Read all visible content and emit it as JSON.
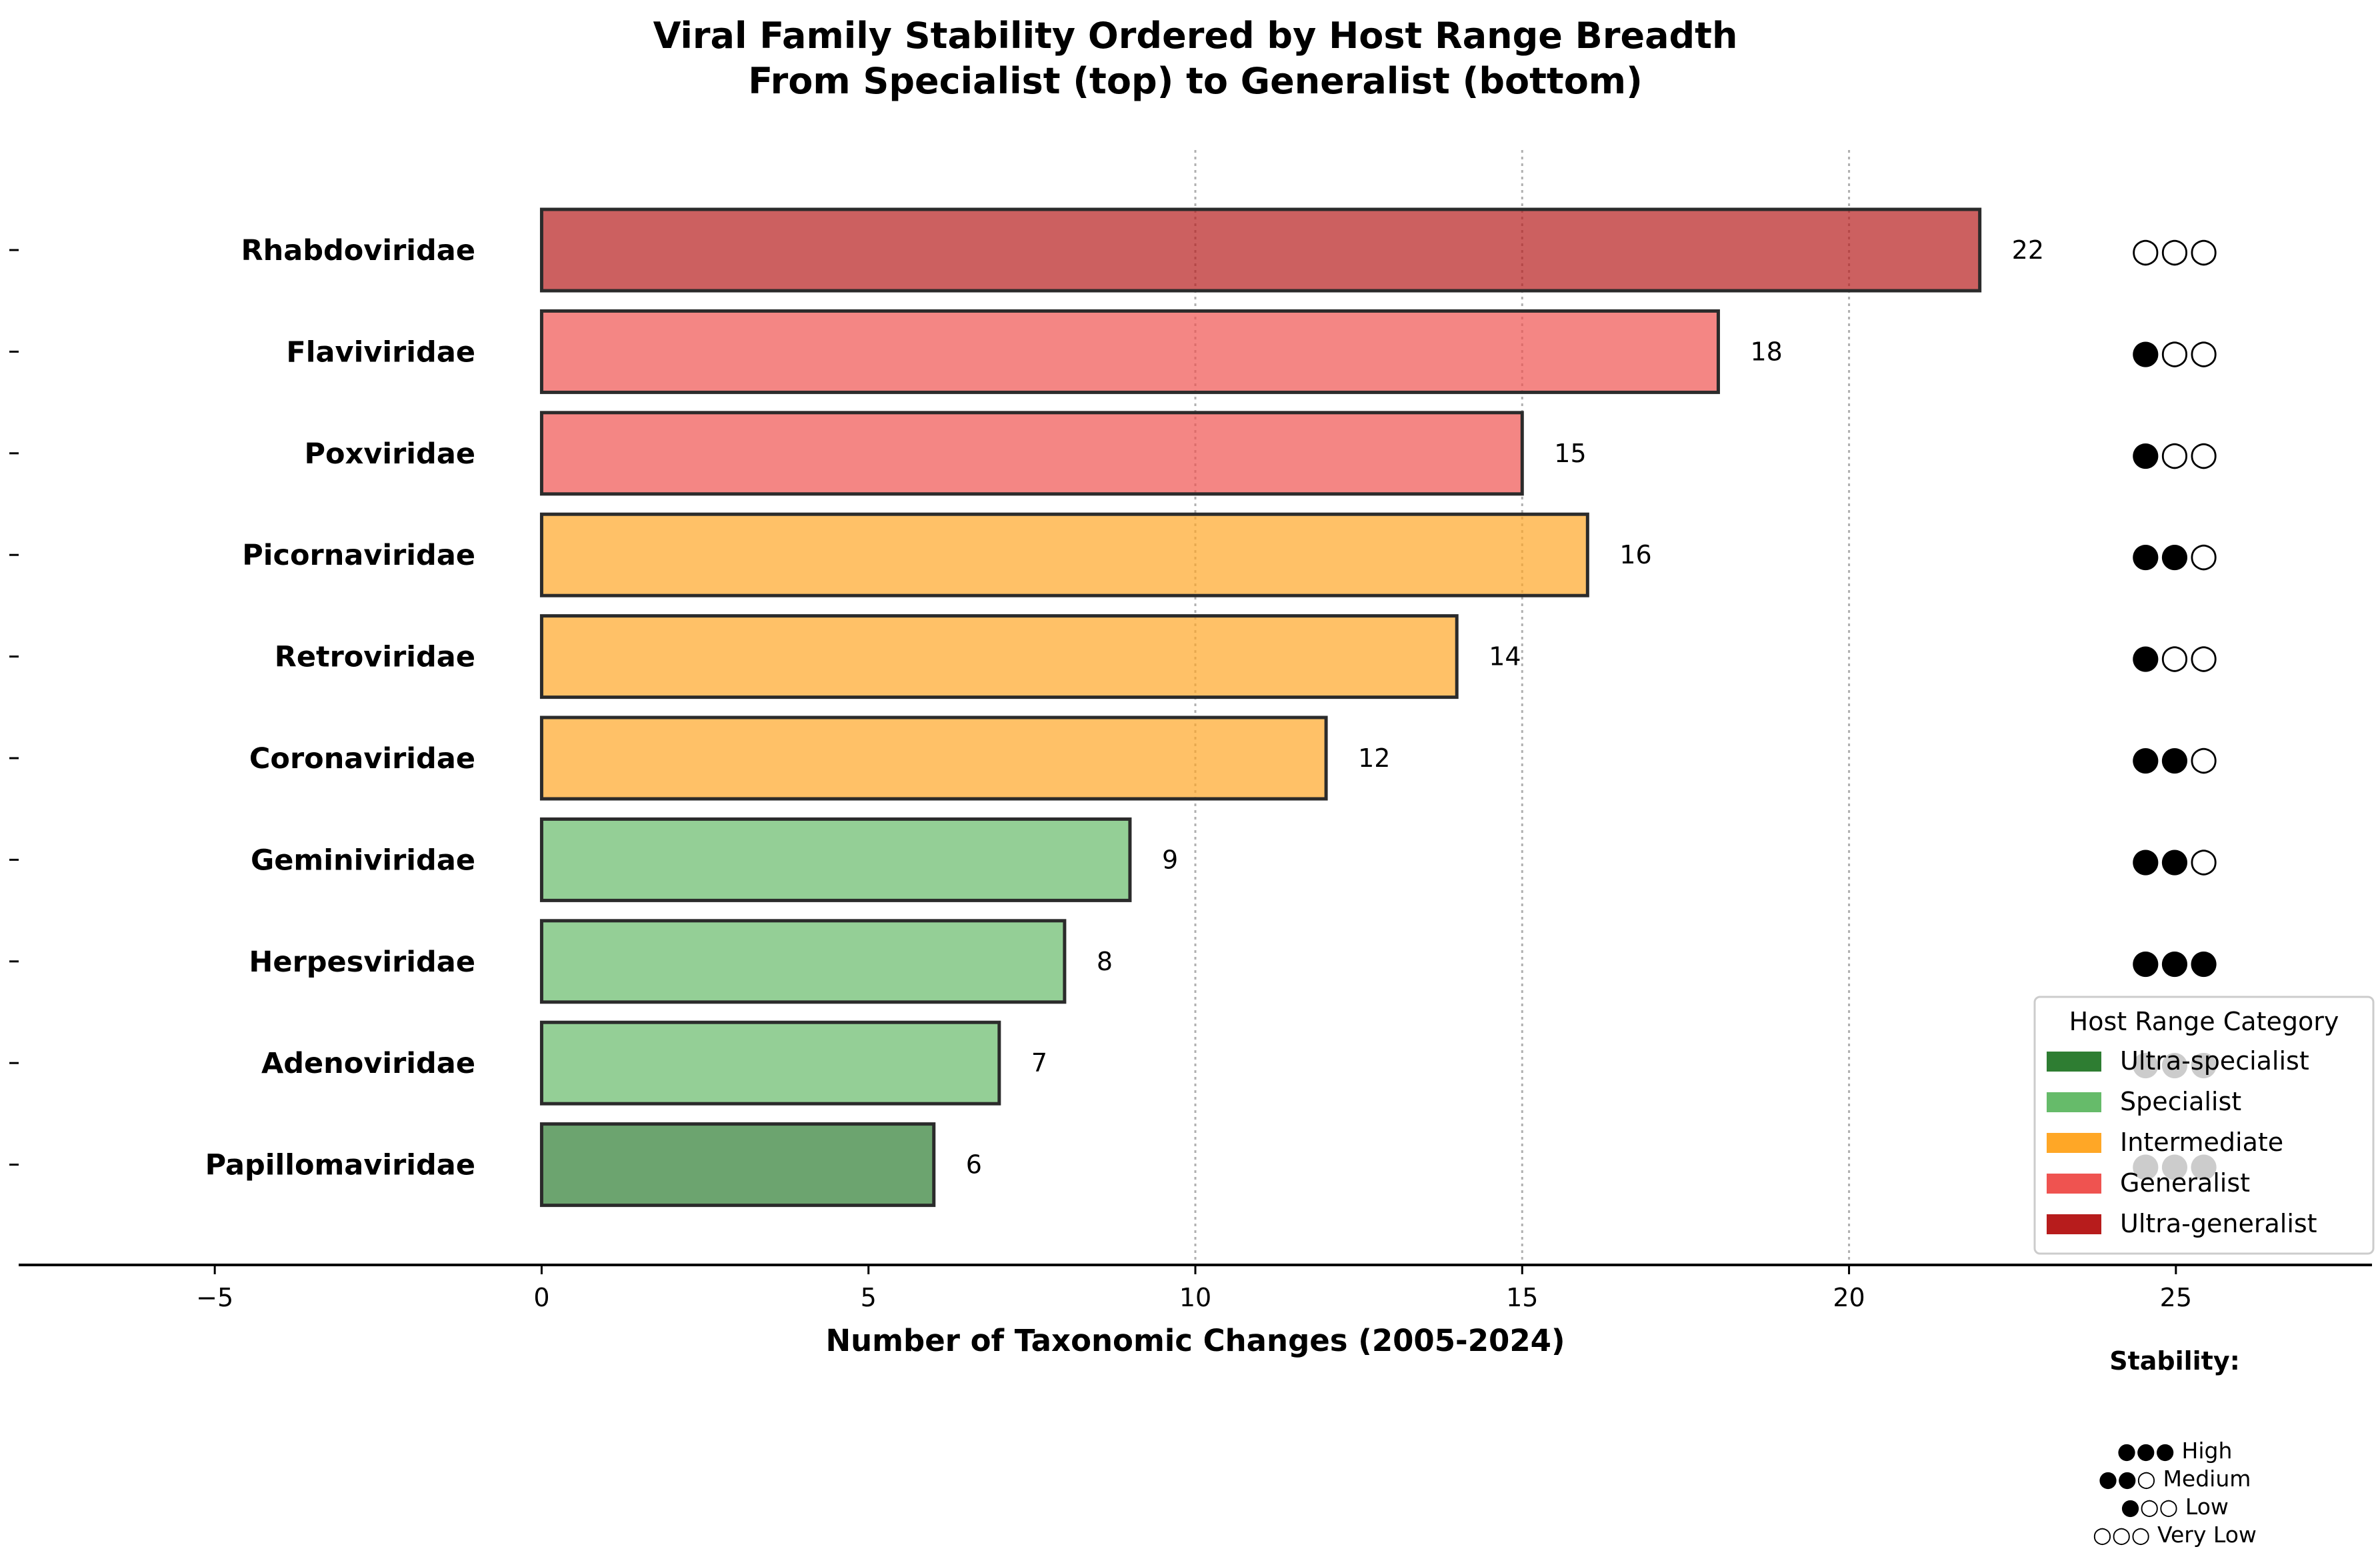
{
  "chart_data": {
    "type": "bar",
    "orientation": "horizontal",
    "title": "Viral Family Stability Ordered by Host Range Breadth",
    "subtitle": "From Specialist (top) to Generalist (bottom)",
    "xlabel": "Number of Taxonomic Changes (2005-2024)",
    "xlim": [
      -8,
      28
    ],
    "xticks": [
      -5,
      0,
      5,
      10,
      15,
      20,
      25
    ],
    "xtick_labels": [
      "−5",
      "0",
      "5",
      "10",
      "15",
      "20",
      "25"
    ],
    "grid_x": [
      10,
      15,
      20
    ],
    "categories": [
      "Rhabdoviridae",
      "Flaviviridae",
      "Poxviridae",
      "Picornaviridae",
      "Retroviridae",
      "Coronaviridae",
      "Geminiviridae",
      "Herpesviridae",
      "Adenoviridae",
      "Papillomaviridae"
    ],
    "values": [
      22,
      18,
      15,
      16,
      14,
      12,
      9,
      8,
      7,
      6
    ],
    "value_labels": [
      "22",
      "18",
      "15",
      "16",
      "14",
      "12",
      "9",
      "8",
      "7",
      "6"
    ],
    "host_range": [
      "Ultra-generalist",
      "Generalist",
      "Generalist",
      "Intermediate",
      "Intermediate",
      "Intermediate",
      "Specialist",
      "Specialist",
      "Specialist",
      "Ultra-specialist"
    ],
    "stability": [
      "○○○",
      "●○○",
      "●○○",
      "●●○",
      "●○○",
      "●●○",
      "●●○",
      "●●●",
      "●●●",
      "●●●"
    ],
    "legend": {
      "title": "Host Range Category",
      "placement": "lower-right",
      "entries": [
        {
          "label": "Ultra-specialist",
          "color": "#2e7d32"
        },
        {
          "label": "Specialist",
          "color": "#66bb6a"
        },
        {
          "label": "Intermediate",
          "color": "#ffa726"
        },
        {
          "label": "Generalist",
          "color": "#ef5350"
        },
        {
          "label": "Ultra-generalist",
          "color": "#b71c1c"
        }
      ]
    },
    "stability_key": {
      "title": "Stability:",
      "lines": [
        "●●● High",
        "●●○ Medium",
        "●○○ Low",
        "○○○ Very Low"
      ]
    }
  }
}
